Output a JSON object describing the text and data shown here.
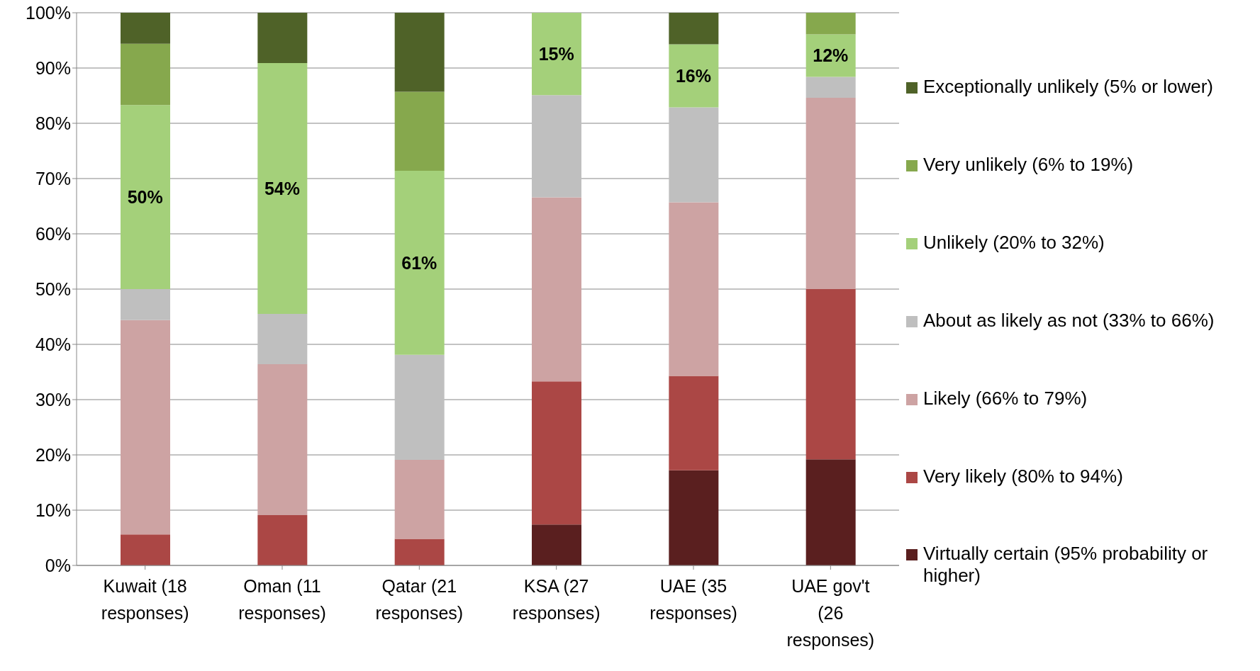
{
  "chart_data": {
    "type": "bar",
    "stacked": true,
    "categories": [
      "Kuwait (18 responses)",
      "Oman (11 responses)",
      "Qatar (21 responses)",
      "KSA (27 responses)",
      "UAE (35 responses)",
      "UAE gov't (26 responses)"
    ],
    "series": [
      {
        "name": "Virtually certain (95% probability or higher)",
        "color": "#5a1f1f",
        "values": [
          0,
          0,
          0,
          7.4,
          17.2,
          19.2
        ]
      },
      {
        "name": "Very likely (80% to 94%)",
        "color": "#ab4745",
        "values": [
          5.6,
          9.1,
          4.8,
          25.9,
          17.1,
          30.8
        ]
      },
      {
        "name": "Likely (66% to 79%)",
        "color": "#cda3a3",
        "values": [
          38.8,
          27.3,
          14.3,
          33.3,
          31.4,
          34.6
        ]
      },
      {
        "name": "About as likely as not (33% to 66%)",
        "color": "#bfbfbf",
        "values": [
          5.6,
          9.1,
          19.0,
          18.5,
          17.2,
          3.8
        ]
      },
      {
        "name": "Unlikely (20% to 32%)",
        "color": "#a4d07a",
        "values": [
          33.3,
          45.4,
          33.3,
          14.9,
          11.4,
          7.7
        ]
      },
      {
        "name": "Very unlikely (6% to 19%)",
        "color": "#86a84d",
        "values": [
          11.1,
          0,
          14.3,
          0,
          0,
          3.9
        ]
      },
      {
        "name": "Exceptionally unlikely (5% or lower)",
        "color": "#4f6228",
        "values": [
          5.6,
          9.1,
          14.3,
          0,
          5.7,
          0
        ]
      }
    ],
    "ylim": [
      0,
      100
    ],
    "yticks": [
      {
        "value": 0,
        "label": "0%"
      },
      {
        "value": 10,
        "label": "10%"
      },
      {
        "value": 20,
        "label": "20%"
      },
      {
        "value": 30,
        "label": "30%"
      },
      {
        "value": 40,
        "label": "40%"
      },
      {
        "value": 50,
        "label": "50%"
      },
      {
        "value": 60,
        "label": "60%"
      },
      {
        "value": 70,
        "label": "70%"
      },
      {
        "value": 80,
        "label": "80%"
      },
      {
        "value": 90,
        "label": "90%"
      },
      {
        "value": 100,
        "label": "100%"
      }
    ],
    "annotations": [
      "50%",
      "54%",
      "61%",
      "15%",
      "16%",
      "12%"
    ],
    "grid": "y",
    "legend": "right"
  }
}
